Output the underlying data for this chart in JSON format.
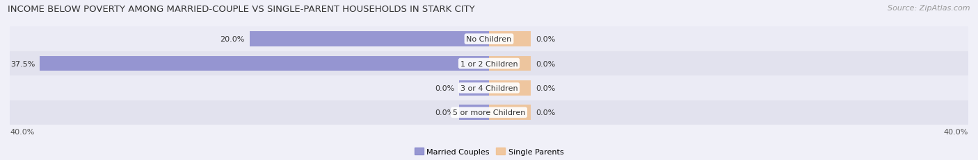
{
  "title": "INCOME BELOW POVERTY AMONG MARRIED-COUPLE VS SINGLE-PARENT HOUSEHOLDS IN STARK CITY",
  "source_text": "Source: ZipAtlas.com",
  "categories": [
    "No Children",
    "1 or 2 Children",
    "3 or 4 Children",
    "5 or more Children"
  ],
  "married_values": [
    20.0,
    37.5,
    0.0,
    0.0
  ],
  "single_values": [
    0.0,
    0.0,
    0.0,
    0.0
  ],
  "married_color": "#8888cc",
  "single_color": "#f0c090",
  "xlim": 40.0,
  "axis_label_left": "40.0%",
  "axis_label_right": "40.0%",
  "title_fontsize": 9.5,
  "source_fontsize": 8,
  "label_fontsize": 8,
  "category_fontsize": 8,
  "legend_fontsize": 8,
  "bar_height": 0.62,
  "background_color": "#f0f0f8",
  "row_bg_even": "#ebebf5",
  "row_bg_odd": "#e2e2ee",
  "stub_bar_size": 2.5,
  "single_stub_size": 3.5
}
